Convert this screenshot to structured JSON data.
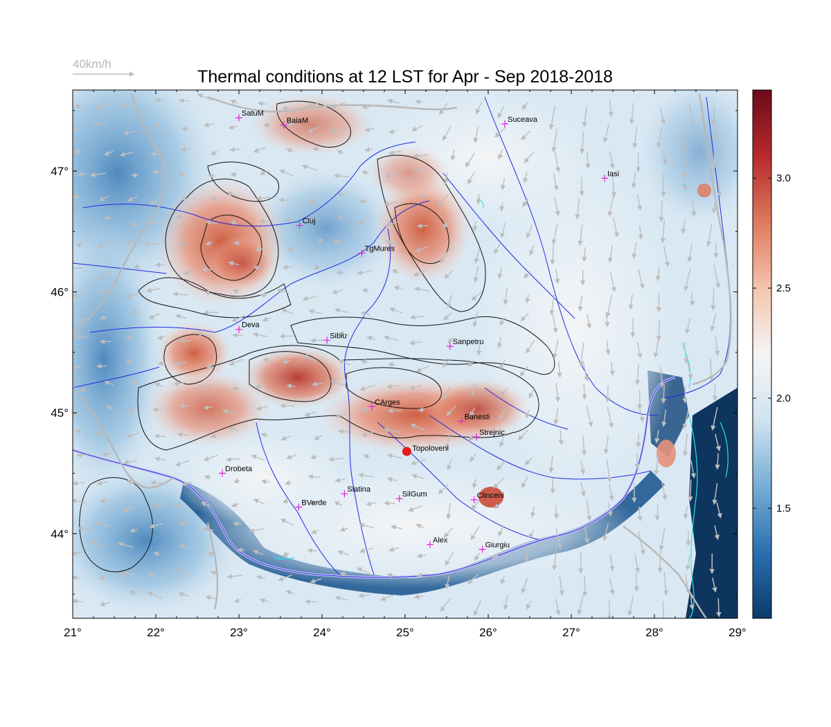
{
  "title": "Thermal conditions at 12 LST for Apr - Sep  2018-2018",
  "wind_scale": {
    "label": "40km/h"
  },
  "axes": {
    "x": {
      "unit": "degree-east",
      "range": [
        21,
        29
      ],
      "ticks": [
        "21°",
        "22°",
        "23°",
        "24°",
        "25°",
        "26°",
        "27°",
        "28°",
        "29°"
      ]
    },
    "y": {
      "unit": "degree-north",
      "range": [
        43.3,
        47.67
      ],
      "ticks": [
        {
          "value": 44,
          "label": "44°"
        },
        {
          "value": 45,
          "label": "45°"
        },
        {
          "value": 46,
          "label": "46°"
        },
        {
          "value": 47,
          "label": "47°"
        }
      ]
    }
  },
  "colorbar": {
    "range": [
      1.0,
      3.4
    ],
    "ticks": [
      {
        "value": 1.5,
        "label": "1.5"
      },
      {
        "value": 2.0,
        "label": "2.0"
      },
      {
        "value": 2.5,
        "label": "2.5"
      },
      {
        "value": 3.0,
        "label": "3.0"
      }
    ],
    "colors": [
      "#0b3a6a",
      "#2a6faf",
      "#77aed6",
      "#cfe3f0",
      "#f5f5f5",
      "#f5c4ac",
      "#dc7a5e",
      "#b72a2c",
      "#6b0a1a"
    ]
  },
  "highlight_site": {
    "name": "Topoloveni",
    "lon": 25.02,
    "lat": 44.68,
    "color": "#e41a1c"
  },
  "cities": [
    {
      "name": "SatuM",
      "lon": 23.0,
      "lat": 47.44
    },
    {
      "name": "BaiaM",
      "lon": 23.54,
      "lat": 47.38
    },
    {
      "name": "Suceava",
      "lon": 26.2,
      "lat": 47.39
    },
    {
      "name": "Iasi",
      "lon": 27.4,
      "lat": 46.94
    },
    {
      "name": "Cluj",
      "lon": 23.73,
      "lat": 46.55
    },
    {
      "name": "TgMures",
      "lon": 24.48,
      "lat": 46.32
    },
    {
      "name": "Deva",
      "lon": 23.0,
      "lat": 45.69
    },
    {
      "name": "Sibiu",
      "lon": 24.06,
      "lat": 45.6
    },
    {
      "name": "Sanpetru",
      "lon": 25.54,
      "lat": 45.55
    },
    {
      "name": "CArges",
      "lon": 24.6,
      "lat": 45.05
    },
    {
      "name": "Banesti",
      "lon": 25.68,
      "lat": 44.93
    },
    {
      "name": "Strejnic",
      "lon": 25.86,
      "lat": 44.8
    },
    {
      "name": "Drobeta",
      "lon": 22.8,
      "lat": 44.5
    },
    {
      "name": "Slatina",
      "lon": 24.27,
      "lat": 44.33
    },
    {
      "name": "SilGum",
      "lon": 24.93,
      "lat": 44.29
    },
    {
      "name": "Clinceni",
      "lon": 25.83,
      "lat": 44.28
    },
    {
      "name": "BVerde",
      "lon": 23.72,
      "lat": 44.22
    },
    {
      "name": "Alex",
      "lon": 25.3,
      "lat": 43.91
    },
    {
      "name": "Giurgiu",
      "lon": 25.93,
      "lat": 43.87
    }
  ]
}
